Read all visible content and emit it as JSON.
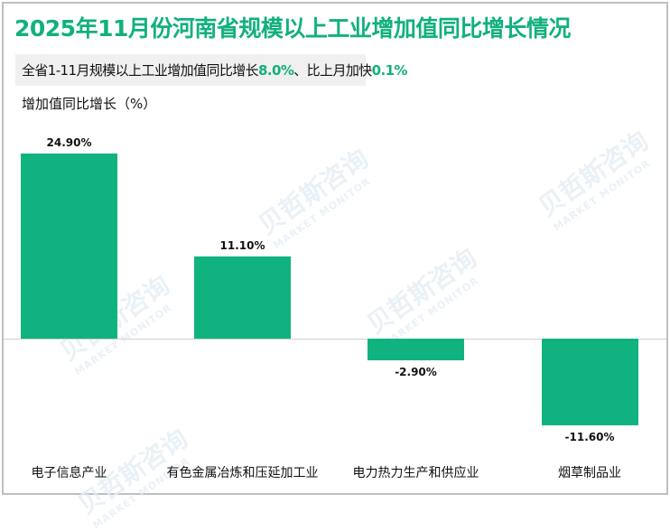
{
  "title": "2025年11月份河南省规模以上工业增加值同比增长情况",
  "subtitle": {
    "prefix": "全省1-11月规模以上工业增加值同比增长",
    "value1": "8.0%",
    "middle": "、比上月加快",
    "value2": "0.1%"
  },
  "ylabel": "增加值同比增长（%）",
  "watermark": {
    "cn": "贝哲斯咨询",
    "en": "MARKET MONITOR"
  },
  "colors": {
    "bar": "#10b37f",
    "title": "#12b07e"
  },
  "chart_data": {
    "type": "bar",
    "title": "2025年11月份河南省规模以上工业增加值同比增长情况",
    "subtitle": "全省1-11月规模以上工业增加值同比增长8.0%、比上月加快0.1%",
    "xlabel": "",
    "ylabel": "增加值同比增长（%）",
    "categories": [
      "电子信息产业",
      "有色金属冶炼和压延加工业",
      "电力热力生产和供应业",
      "烟草制品业"
    ],
    "values": [
      24.9,
      11.1,
      -2.9,
      -11.6
    ],
    "value_labels": [
      "24.90%",
      "11.10%",
      "-2.90%",
      "-11.60%"
    ],
    "grid": false,
    "legend": null
  }
}
